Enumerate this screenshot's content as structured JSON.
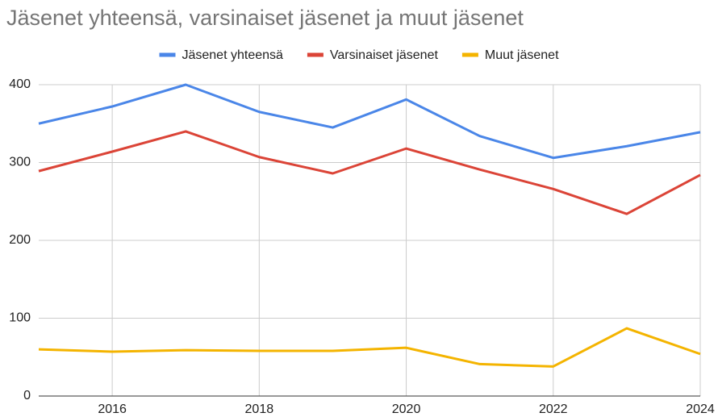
{
  "chart_data": {
    "type": "line",
    "title": "Jäsenet yhteensä, varsinaiset jäsenet ja muut jäsenet",
    "x": [
      2015,
      2016,
      2017,
      2018,
      2019,
      2020,
      2021,
      2022,
      2023,
      2024
    ],
    "series": [
      {
        "name": "Jäsenet yhteensä",
        "color": "#4a86e8",
        "values": [
          350,
          372,
          400,
          365,
          345,
          381,
          334,
          306,
          321,
          339
        ]
      },
      {
        "name": "Varsinaiset jäsenet",
        "color": "#db4437",
        "values": [
          289,
          314,
          340,
          307,
          286,
          318,
          291,
          266,
          234,
          284
        ]
      },
      {
        "name": "Muut jäsenet",
        "color": "#f4b400",
        "values": [
          60,
          57,
          59,
          58,
          58,
          62,
          41,
          38,
          87,
          54
        ]
      }
    ],
    "xlim": [
      2015,
      2024
    ],
    "xticks": [
      2016,
      2018,
      2020,
      2022,
      2024
    ],
    "ylim": [
      0,
      400
    ],
    "yticks": [
      0,
      100,
      200,
      300,
      400
    ],
    "grid": true,
    "legend": "top"
  }
}
